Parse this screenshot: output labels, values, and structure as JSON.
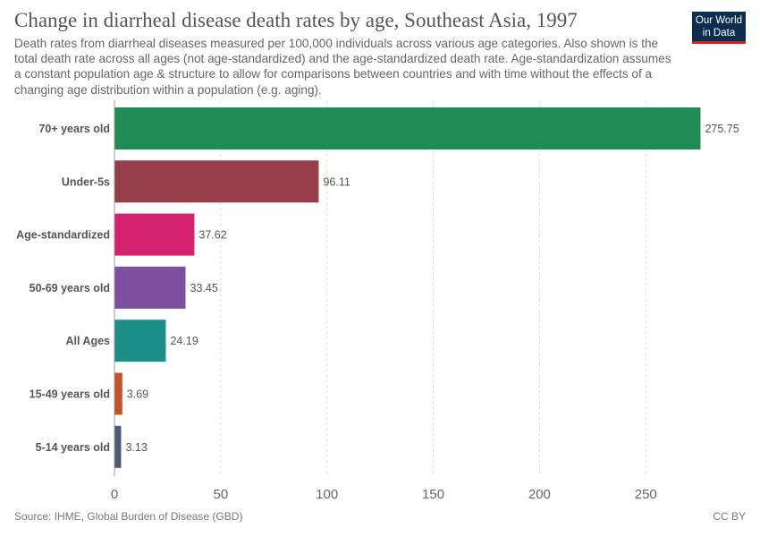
{
  "header": {
    "title": "Change in diarrheal disease death rates by age, Southeast Asia, 1997",
    "subtitle": "Death rates from diarrheal diseases measured per 100,000 individuals across various age categories. Also shown is the total death rate across all ages (not age-standardized) and the age-standardized death rate. Age-standardization assumes a constant population age & structure to allow for comparisons between countries and with time without the effects of a changing age distribution within a population (e.g. aging).",
    "logo_line1": "Our World",
    "logo_line2": "in Data"
  },
  "footer": {
    "source": "Source: IHME, Global Burden of Disease (GBD)",
    "license": "CC BY"
  },
  "chart_data": {
    "type": "bar",
    "orientation": "horizontal",
    "categories": [
      "70+ years old",
      "Under-5s",
      "Age-standardized",
      "50-69 years old",
      "All Ages",
      "15-49 years old",
      "5-14 years old"
    ],
    "values": [
      275.75,
      96.11,
      37.62,
      33.45,
      24.19,
      3.69,
      3.13
    ],
    "value_labels": [
      "275.75",
      "96.11",
      "37.62",
      "33.45",
      "24.19",
      "3.69",
      "3.13"
    ],
    "colors": [
      "#1f8c53",
      "#973f48",
      "#d5226e",
      "#7f4f9f",
      "#1b9088",
      "#c55327",
      "#4e5d77"
    ],
    "xlim": [
      0,
      280
    ],
    "xticks": [
      0,
      50,
      100,
      150,
      200,
      250
    ],
    "xtick_labels": [
      "0",
      "50",
      "100",
      "150",
      "200",
      "250"
    ],
    "grid": "vertical-dashed",
    "xlabel": "",
    "ylabel": ""
  }
}
